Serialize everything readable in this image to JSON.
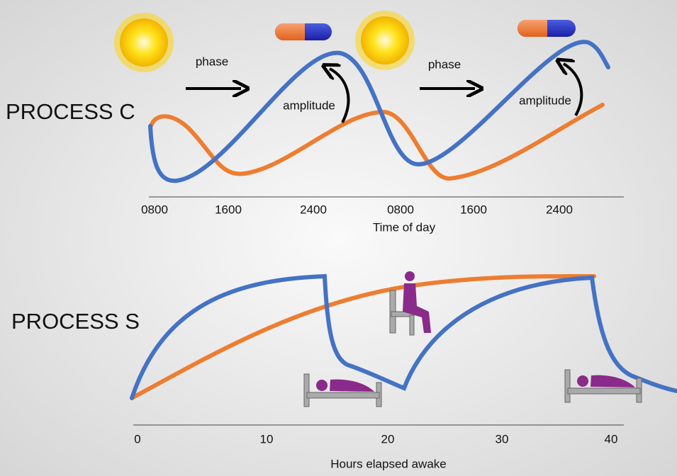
{
  "process_c": {
    "label": "PROCESS C",
    "phase_labels": [
      "phase",
      "phase"
    ],
    "amplitude_labels": [
      "amplitude",
      "amplitude"
    ],
    "ticks": [
      "0800",
      "1600",
      "2400",
      "0800",
      "1600",
      "2400"
    ],
    "axis_title": "Time of day"
  },
  "process_s": {
    "label": "PROCESS S",
    "ticks": [
      "0",
      "10",
      "20",
      "30",
      "40"
    ],
    "axis_title": "Hours elapsed awake"
  }
}
